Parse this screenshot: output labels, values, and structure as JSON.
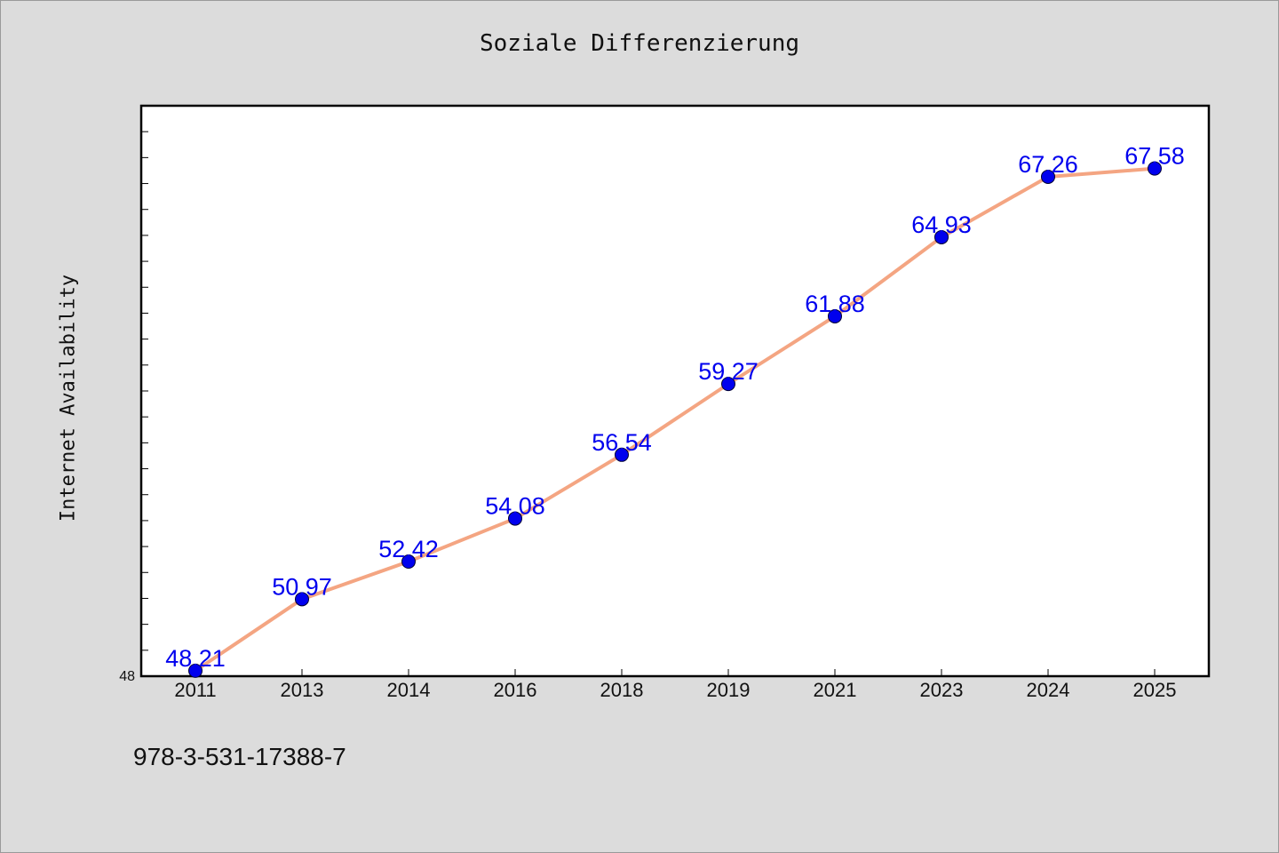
{
  "footer": {
    "isbn": "978-3-531-17388-7"
  },
  "chart_data": {
    "type": "line",
    "title": "Soziale Differenzierung",
    "xlabel": "",
    "ylabel": "Internet Availability",
    "categories": [
      "2011",
      "2013",
      "2014",
      "2016",
      "2018",
      "2019",
      "2021",
      "2023",
      "2024",
      "2025"
    ],
    "series": [
      {
        "values": [
          48.21,
          50.97,
          52.42,
          54.08,
          56.54,
          59.27,
          61.88,
          64.93,
          67.26,
          67.58
        ]
      }
    ],
    "data_labels": [
      "48.21",
      "50.97",
      "52.42",
      "54.08",
      "56.54",
      "59.27",
      "61.88",
      "64.93",
      "67.26",
      "67.58"
    ],
    "ylim": [
      48,
      70
    ],
    "y_tick_labels": [
      "48"
    ],
    "grid": false,
    "legend": "none",
    "colors": {
      "line": "#f4a582",
      "marker": "#0000ee",
      "data_label": "#0000ee",
      "plot_background": "#ffffff",
      "page_background": "#dcdcdc"
    }
  }
}
